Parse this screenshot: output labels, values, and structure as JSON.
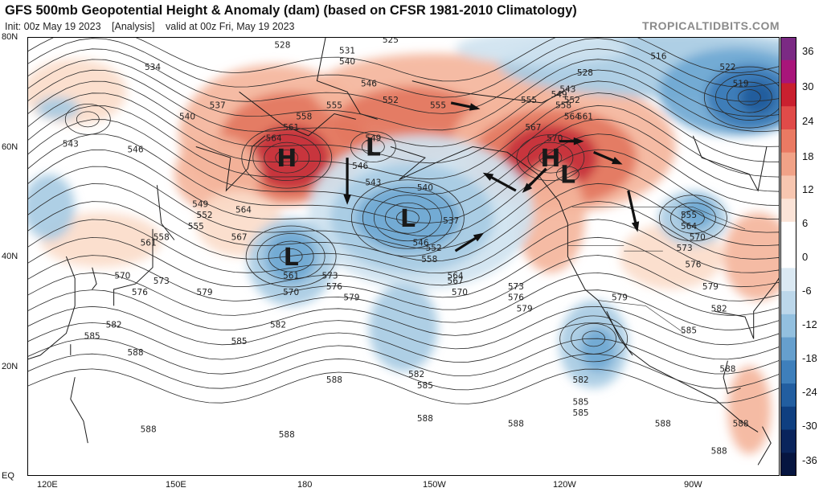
{
  "title": "GFS 500mb Geopotential Height & Anomaly (dam) (based on CFSR 1981-2010 Climatology)",
  "init_text": "Init: 00z May 19 2023",
  "analysis_text": "[Analysis]",
  "valid_text": "valid at 00z Fri, May 19 2023",
  "brand": "TROPICALTIDBITS.COM",
  "lat_labels": [
    "80N",
    "60N",
    "40N",
    "20N",
    "EQ"
  ],
  "lon_labels": [
    "120E",
    "150E",
    "180",
    "150W",
    "120W",
    "90W"
  ],
  "colorbar_labels": [
    "36",
    "30",
    "24",
    "18",
    "12",
    "6",
    "0",
    "-6",
    "-12",
    "-18",
    "-24",
    "-30",
    "-36"
  ],
  "colors": {
    "pos_strong": "#c62f3a",
    "pos_mid": "#e3775f",
    "pos_light": "#f4b59c",
    "pos_faint": "#fbdcca",
    "neg_faint": "#cfe3f0",
    "neg_light": "#a7cbe3",
    "neg_mid": "#6fa8d2",
    "neg_strong": "#3a7ab6",
    "neg_deep": "#1f5a9a"
  },
  "pressure_centers": [
    {
      "type": "H",
      "lat": 58,
      "lon": 171
    },
    {
      "type": "L",
      "lat": 60,
      "lon": -169
    },
    {
      "type": "L",
      "lat": 47,
      "lon": -161
    },
    {
      "type": "L",
      "lat": 40,
      "lon": 172
    },
    {
      "type": "H",
      "lat": 58,
      "lon": -128
    },
    {
      "type": "L",
      "lat": 55,
      "lon": -124
    }
  ],
  "contour_labels": [
    {
      "t": "528",
      "lat": 78,
      "lon": 170
    },
    {
      "t": "525",
      "lat": 79,
      "lon": -165
    },
    {
      "t": "531",
      "lat": 77,
      "lon": -175
    },
    {
      "t": "534",
      "lat": 74,
      "lon": 140
    },
    {
      "t": "540",
      "lat": 75,
      "lon": -175
    },
    {
      "t": "546",
      "lat": 71,
      "lon": -170
    },
    {
      "t": "552",
      "lat": 68,
      "lon": -165
    },
    {
      "t": "555",
      "lat": 67,
      "lon": -178
    },
    {
      "t": "558",
      "lat": 65,
      "lon": 175
    },
    {
      "t": "561",
      "lat": 63,
      "lon": 172
    },
    {
      "t": "564",
      "lat": 61,
      "lon": 168
    },
    {
      "t": "537",
      "lat": 67,
      "lon": 155
    },
    {
      "t": "540",
      "lat": 65,
      "lon": 148
    },
    {
      "t": "543",
      "lat": 60,
      "lon": 121
    },
    {
      "t": "546",
      "lat": 59,
      "lon": 136
    },
    {
      "t": "549",
      "lat": 49,
      "lon": 151
    },
    {
      "t": "552",
      "lat": 47,
      "lon": 152
    },
    {
      "t": "555",
      "lat": 45,
      "lon": 150
    },
    {
      "t": "558",
      "lat": 43,
      "lon": 142
    },
    {
      "t": "561",
      "lat": 42,
      "lon": 139
    },
    {
      "t": "564",
      "lat": 48,
      "lon": 161
    },
    {
      "t": "567",
      "lat": 43,
      "lon": 160
    },
    {
      "t": "570",
      "lat": 36,
      "lon": 133
    },
    {
      "t": "573",
      "lat": 35,
      "lon": 142
    },
    {
      "t": "576",
      "lat": 33,
      "lon": 137
    },
    {
      "t": "579",
      "lat": 33,
      "lon": 152
    },
    {
      "t": "582",
      "lat": 27,
      "lon": 131
    },
    {
      "t": "585",
      "lat": 25,
      "lon": 126
    },
    {
      "t": "588",
      "lat": 22,
      "lon": 136
    },
    {
      "t": "561",
      "lat": 36,
      "lon": 172
    },
    {
      "t": "570",
      "lat": 33,
      "lon": 172
    },
    {
      "t": "582",
      "lat": 27,
      "lon": 169
    },
    {
      "t": "585",
      "lat": 24,
      "lon": 160
    },
    {
      "t": "588",
      "lat": 17,
      "lon": -178
    },
    {
      "t": "573",
      "lat": 36,
      "lon": -179
    },
    {
      "t": "576",
      "lat": 34,
      "lon": -178
    },
    {
      "t": "579",
      "lat": 32,
      "lon": -174
    },
    {
      "t": "555",
      "lat": 67,
      "lon": -154
    },
    {
      "t": "549",
      "lat": 61,
      "lon": -169
    },
    {
      "t": "546",
      "lat": 56,
      "lon": -172
    },
    {
      "t": "543",
      "lat": 53,
      "lon": -169
    },
    {
      "t": "540",
      "lat": 52,
      "lon": -157
    },
    {
      "t": "537",
      "lat": 46,
      "lon": -151
    },
    {
      "t": "546",
      "lat": 42,
      "lon": -158
    },
    {
      "t": "552",
      "lat": 41,
      "lon": -155
    },
    {
      "t": "558",
      "lat": 39,
      "lon": -156
    },
    {
      "t": "564",
      "lat": 36,
      "lon": -150
    },
    {
      "t": "567",
      "lat": 35,
      "lon": -150
    },
    {
      "t": "570",
      "lat": 33,
      "lon": -149
    },
    {
      "t": "573",
      "lat": 34,
      "lon": -136
    },
    {
      "t": "576",
      "lat": 32,
      "lon": -136
    },
    {
      "t": "579",
      "lat": 30,
      "lon": -134
    },
    {
      "t": "582",
      "lat": 18,
      "lon": -159
    },
    {
      "t": "585",
      "lat": 16,
      "lon": -157
    },
    {
      "t": "588",
      "lat": 10,
      "lon": -157
    },
    {
      "t": "549",
      "lat": 69,
      "lon": -126
    },
    {
      "t": "555",
      "lat": 68,
      "lon": -133
    },
    {
      "t": "558",
      "lat": 67,
      "lon": -125
    },
    {
      "t": "552",
      "lat": 68,
      "lon": -123
    },
    {
      "t": "543",
      "lat": 70,
      "lon": -124
    },
    {
      "t": "564",
      "lat": 65,
      "lon": -123
    },
    {
      "t": "567",
      "lat": 63,
      "lon": -132
    },
    {
      "t": "561",
      "lat": 65,
      "lon": -120
    },
    {
      "t": "570",
      "lat": 61,
      "lon": -127
    },
    {
      "t": "528",
      "lat": 73,
      "lon": -120
    },
    {
      "t": "516",
      "lat": 76,
      "lon": -103
    },
    {
      "t": "522",
      "lat": 74,
      "lon": -87
    },
    {
      "t": "519",
      "lat": 71,
      "lon": -84
    },
    {
      "t": "555",
      "lat": 47,
      "lon": -96
    },
    {
      "t": "564",
      "lat": 45,
      "lon": -96
    },
    {
      "t": "570",
      "lat": 43,
      "lon": -94
    },
    {
      "t": "573",
      "lat": 41,
      "lon": -97
    },
    {
      "t": "576",
      "lat": 38,
      "lon": -95
    },
    {
      "t": "579",
      "lat": 34,
      "lon": -91
    },
    {
      "t": "582",
      "lat": 30,
      "lon": -89
    },
    {
      "t": "585",
      "lat": 26,
      "lon": -96
    },
    {
      "t": "588",
      "lat": 19,
      "lon": -87
    },
    {
      "t": "579",
      "lat": 32,
      "lon": -112
    },
    {
      "t": "582",
      "lat": 17,
      "lon": -121
    },
    {
      "t": "585",
      "lat": 13,
      "lon": -121
    },
    {
      "t": "585",
      "lat": 11,
      "lon": -121
    },
    {
      "t": "588",
      "lat": 9,
      "lon": -84
    },
    {
      "t": "588",
      "lat": 9,
      "lon": -136
    },
    {
      "t": "588",
      "lat": 9,
      "lon": -102
    },
    {
      "t": "588",
      "lat": 8,
      "lon": 139
    },
    {
      "t": "588",
      "lat": 7,
      "lon": 171
    },
    {
      "t": "588",
      "lat": 4,
      "lon": -89
    }
  ]
}
